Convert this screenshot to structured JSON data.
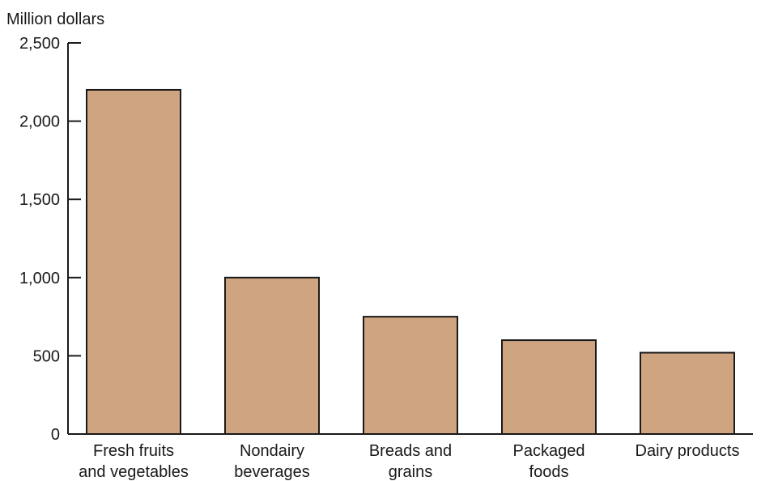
{
  "chart_data": {
    "type": "bar",
    "title": "",
    "xlabel": "",
    "ylabel": "Million dollars",
    "ylim": [
      0,
      2500
    ],
    "yticks": [
      {
        "value": 0,
        "label": "0"
      },
      {
        "value": 500,
        "label": "500"
      },
      {
        "value": 1000,
        "label": "1,000"
      },
      {
        "value": 1500,
        "label": "1,500"
      },
      {
        "value": 2000,
        "label": "2,000"
      },
      {
        "value": 2500,
        "label": "2,500"
      }
    ],
    "categories": [
      {
        "lines": [
          "Fresh fruits",
          "and vegetables"
        ]
      },
      {
        "lines": [
          "Nondairy",
          "beverages"
        ]
      },
      {
        "lines": [
          "Breads and",
          "grains"
        ]
      },
      {
        "lines": [
          "Packaged",
          "foods"
        ]
      },
      {
        "lines": [
          "Dairy products"
        ]
      }
    ],
    "values": [
      2200,
      1000,
      750,
      600,
      520
    ],
    "grid": false,
    "bar_color": "#cfa581",
    "bar_stroke": "#1a1a1a",
    "axis_color": "#1a1a1a"
  }
}
